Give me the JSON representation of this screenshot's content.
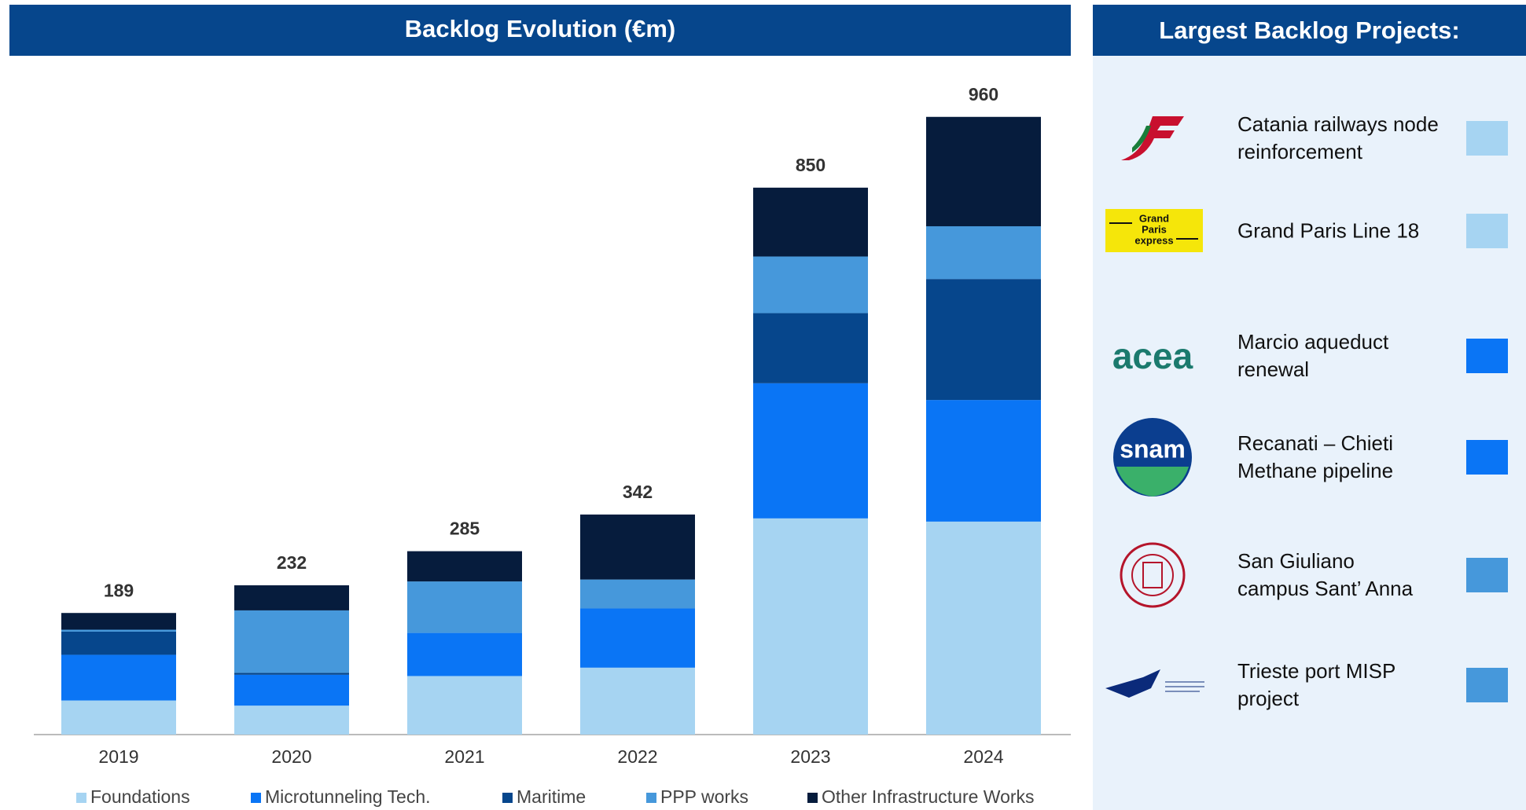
{
  "chart_data": {
    "type": "stacked_bar",
    "title": "Backlog Evolution (€m)",
    "categories": [
      "2019",
      "2020",
      "2021",
      "2022",
      "2023",
      "2024"
    ],
    "series": [
      {
        "name": "Foundations",
        "color": "#a6d4f2",
        "values": [
          53,
          45,
          91,
          104,
          336,
          331
        ]
      },
      {
        "name": "Microtunneling Tech.",
        "color": "#0a75f5",
        "values": [
          71,
          48,
          67,
          92,
          210,
          189
        ]
      },
      {
        "name": "Maritime",
        "color": "#06468c",
        "values": [
          36,
          3,
          0,
          0,
          109,
          188
        ]
      },
      {
        "name": "PPP works",
        "color": "#4698db",
        "values": [
          3,
          97,
          80,
          45,
          88,
          82
        ]
      },
      {
        "name": "Other Infrastructure Works",
        "color": "#061c3d",
        "values": [
          26,
          39,
          47,
          101,
          107,
          170
        ]
      }
    ],
    "totals": [
      189,
      232,
      285,
      342,
      850,
      960
    ],
    "ylim": [
      0,
      1000
    ]
  },
  "side_panel": {
    "title": "Largest Backlog Projects:",
    "projects": [
      {
        "lines": [
          "Catania railways node",
          "reinforcement"
        ],
        "color": "#a6d4f2"
      },
      {
        "lines": [
          "Grand Paris Line 18"
        ],
        "color": "#a6d4f2",
        "logo_text": [
          "Grand",
          "Paris",
          "express"
        ]
      },
      {
        "lines": [
          "Marcio aqueduct",
          "renewal"
        ],
        "color": "#0a75f5",
        "logo_text": [
          "acea"
        ]
      },
      {
        "lines": [
          "Recanati – Chieti",
          "Methane pipeline"
        ],
        "color": "#0a75f5",
        "logo_text": [
          "snam"
        ]
      },
      {
        "lines": [
          "San Giuliano",
          "campus Sant’ Anna"
        ],
        "color": "#4698db"
      },
      {
        "lines": [
          "Trieste port MISP",
          "project"
        ],
        "color": "#4698db"
      }
    ]
  }
}
